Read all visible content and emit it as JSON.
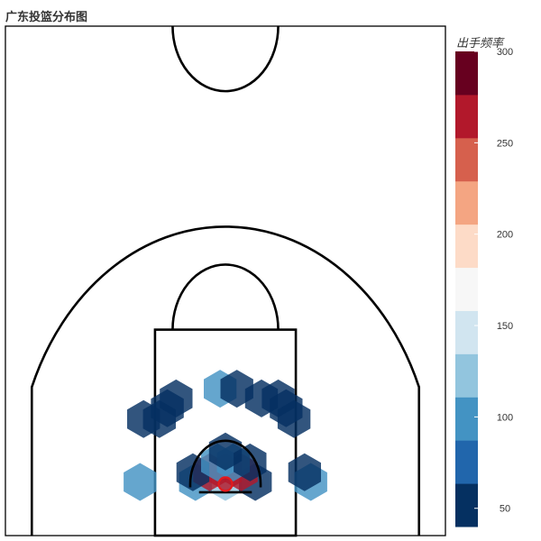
{
  "title": "广东投篮分布图",
  "chart_data": {
    "type": "hexbin",
    "title": "广东投篮分布图",
    "colorbar": {
      "title": "出手频率",
      "range": [
        40,
        300
      ],
      "ticks": [
        50,
        100,
        150,
        200,
        250,
        300
      ],
      "colors": [
        "#053061",
        "#2166ac",
        "#4393c3",
        "#92c5de",
        "#d1e5f0",
        "#f7f7f7",
        "#fddbc7",
        "#f4a582",
        "#d6604d",
        "#b2182b",
        "#67001f"
      ]
    },
    "hexbins": [
      {
        "x": 0,
        "y": 2,
        "value": 130
      },
      {
        "x": -34,
        "y": 2,
        "value": 95
      },
      {
        "x": 34,
        "y": 2,
        "value": 60
      },
      {
        "x": 0,
        "y": 11,
        "value": 275
      },
      {
        "x": -18,
        "y": 11,
        "value": 270
      },
      {
        "x": 18,
        "y": 11,
        "value": 270
      },
      {
        "x": -37,
        "y": 11,
        "value": 60
      },
      {
        "x": -9,
        "y": 20,
        "value": 95
      },
      {
        "x": 9,
        "y": 20,
        "value": 95
      },
      {
        "x": 28,
        "y": 20,
        "value": 60
      },
      {
        "x": 0,
        "y": 30,
        "value": 60
      },
      {
        "x": -97,
        "y": 2,
        "value": 110
      },
      {
        "x": 97,
        "y": 2,
        "value": 95
      },
      {
        "x": 90,
        "y": 11,
        "value": 60
      },
      {
        "x": -93,
        "y": 60,
        "value": 60
      },
      {
        "x": -75,
        "y": 60,
        "value": 60
      },
      {
        "x": -66,
        "y": 70,
        "value": 60
      },
      {
        "x": -56,
        "y": 79,
        "value": 60
      },
      {
        "x": -6,
        "y": 88,
        "value": 95
      },
      {
        "x": 13,
        "y": 88,
        "value": 60
      },
      {
        "x": 41,
        "y": 79,
        "value": 60
      },
      {
        "x": 60,
        "y": 79,
        "value": 60
      },
      {
        "x": 69,
        "y": 70,
        "value": 60
      },
      {
        "x": 78,
        "y": 60,
        "value": 60
      }
    ]
  }
}
